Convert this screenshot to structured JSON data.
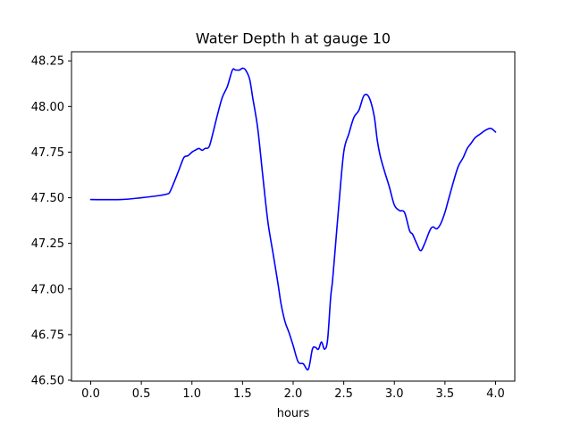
{
  "chart_data": {
    "type": "line",
    "title": "Water Depth h at gauge 10",
    "xlabel": "hours",
    "ylabel": "",
    "xlim": [
      -0.19,
      4.19
    ],
    "ylim": [
      46.495,
      48.3
    ],
    "xticks": [
      0.0,
      0.5,
      1.0,
      1.5,
      2.0,
      2.5,
      3.0,
      3.5,
      4.0
    ],
    "xtick_labels": [
      "0.0",
      "0.5",
      "1.0",
      "1.5",
      "2.0",
      "2.5",
      "3.0",
      "3.5",
      "4.0"
    ],
    "yticks": [
      46.5,
      46.75,
      47.0,
      47.25,
      47.5,
      47.75,
      48.0,
      48.25
    ],
    "ytick_labels": [
      "46.50",
      "46.75",
      "47.00",
      "47.25",
      "47.50",
      "47.75",
      "48.00",
      "48.25"
    ],
    "grid": false,
    "series": [
      {
        "color": "#0000ff",
        "x": [
          0.0,
          0.3,
          0.5,
          0.65,
          0.75,
          0.78,
          0.82,
          0.87,
          0.92,
          0.96,
          1.0,
          1.03,
          1.07,
          1.1,
          1.13,
          1.17,
          1.21,
          1.25,
          1.3,
          1.35,
          1.4,
          1.43,
          1.47,
          1.5,
          1.53,
          1.57,
          1.6,
          1.65,
          1.7,
          1.75,
          1.8,
          1.85,
          1.88,
          1.92,
          1.96,
          2.0,
          2.05,
          2.1,
          2.15,
          2.19,
          2.22,
          2.25,
          2.28,
          2.31,
          2.34,
          2.37,
          2.39,
          2.42,
          2.45,
          2.5,
          2.55,
          2.6,
          2.65,
          2.7,
          2.75,
          2.8,
          2.83,
          2.86,
          2.9,
          2.95,
          3.0,
          3.05,
          3.1,
          3.15,
          3.18,
          3.22,
          3.26,
          3.3,
          3.35,
          3.38,
          3.42,
          3.46,
          3.5,
          3.53,
          3.58,
          3.63,
          3.68,
          3.72,
          3.76,
          3.8,
          3.85,
          3.9,
          3.95,
          3.98,
          4.0
        ],
        "values": [
          47.49,
          47.49,
          47.5,
          47.51,
          47.52,
          47.53,
          47.58,
          47.65,
          47.72,
          47.73,
          47.75,
          47.76,
          47.77,
          47.76,
          47.77,
          47.78,
          47.86,
          47.95,
          48.05,
          48.11,
          48.2,
          48.2,
          48.2,
          48.21,
          48.2,
          48.15,
          48.05,
          47.88,
          47.62,
          47.37,
          47.2,
          47.03,
          46.92,
          46.82,
          46.76,
          46.69,
          46.6,
          46.59,
          46.56,
          46.67,
          46.68,
          46.67,
          46.71,
          46.67,
          46.72,
          46.95,
          47.05,
          47.25,
          47.45,
          47.75,
          47.85,
          47.94,
          47.98,
          48.06,
          48.05,
          47.95,
          47.82,
          47.73,
          47.65,
          47.56,
          47.46,
          47.43,
          47.42,
          47.32,
          47.3,
          47.25,
          47.21,
          47.25,
          47.32,
          47.34,
          47.33,
          47.36,
          47.42,
          47.48,
          47.58,
          47.67,
          47.72,
          47.77,
          47.8,
          47.83,
          47.85,
          47.87,
          47.88,
          47.87,
          47.86
        ]
      }
    ]
  }
}
